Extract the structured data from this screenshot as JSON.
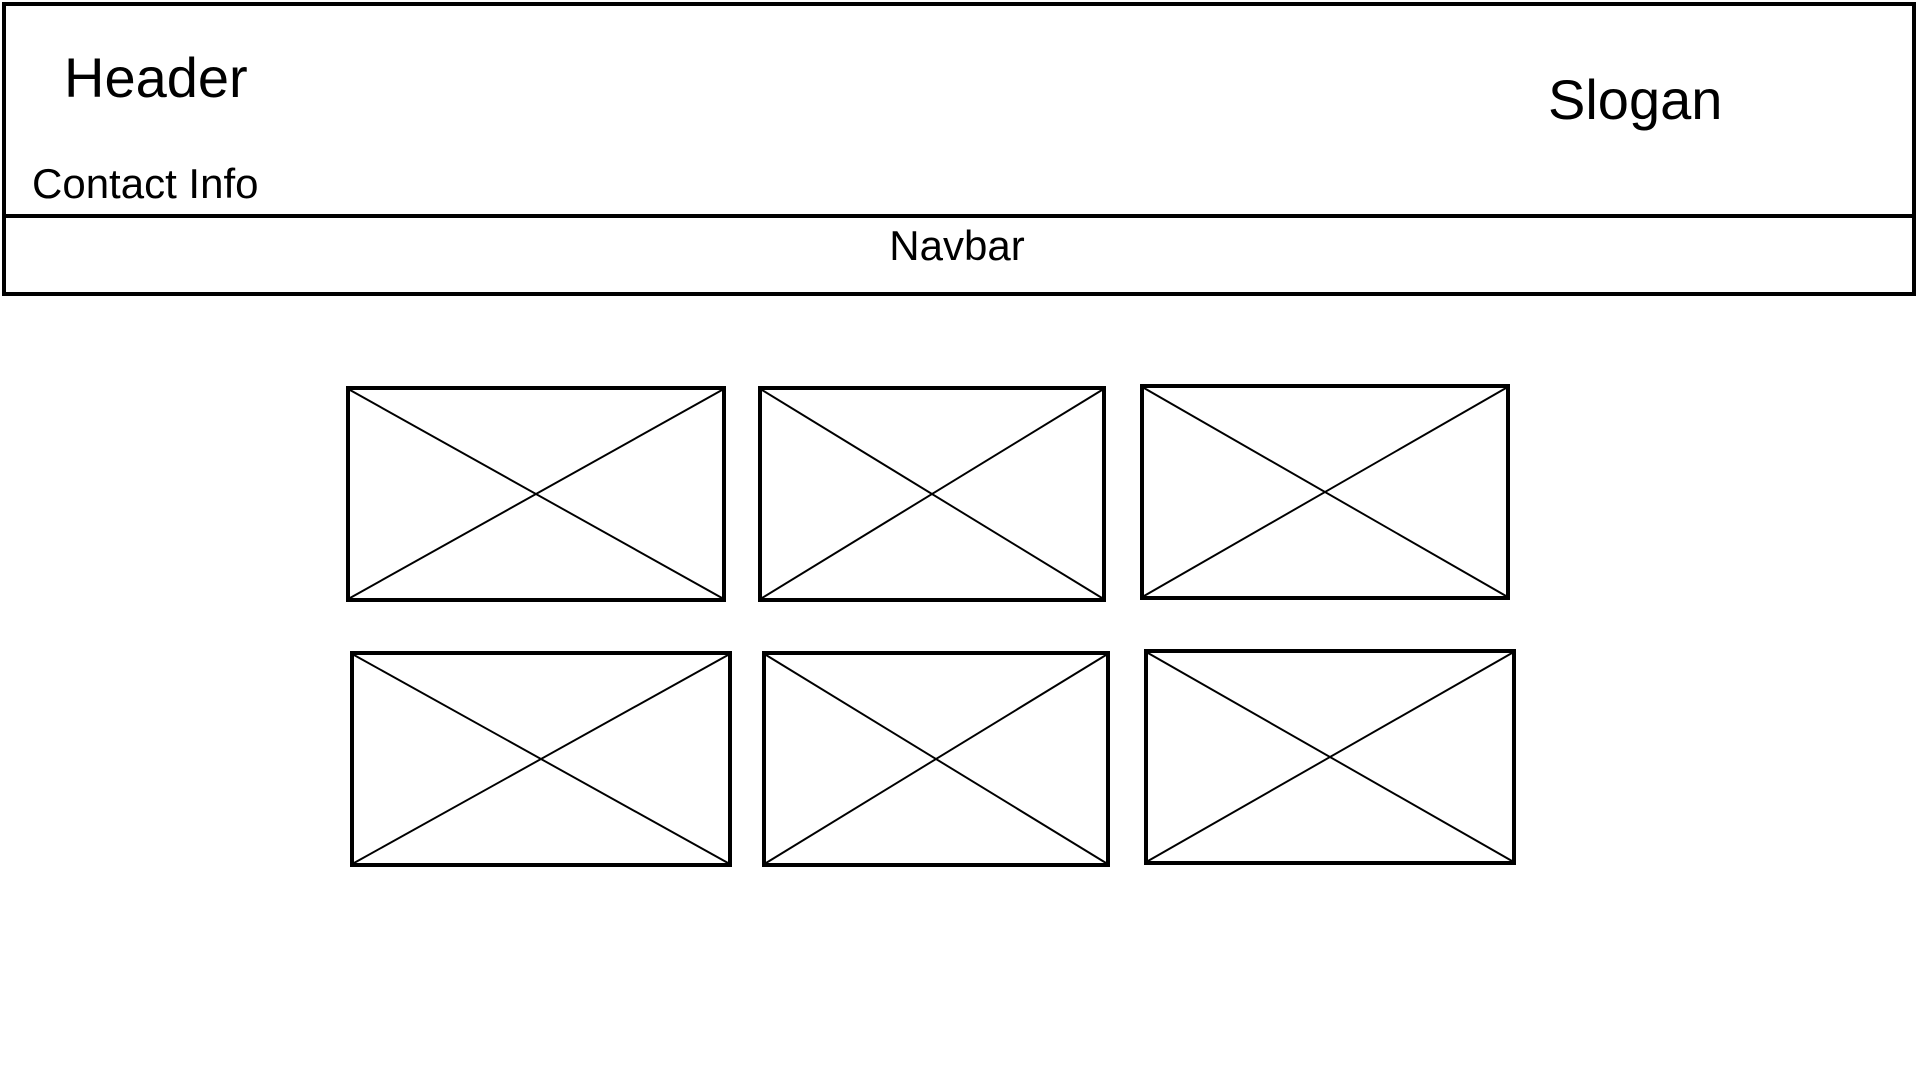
{
  "header": {
    "title": "Header",
    "contact_info": "Contact Info",
    "slogan": "Slogan"
  },
  "navbar": {
    "label": "Navbar"
  },
  "image_grid": {
    "placeholder_count": 6,
    "placeholder_icon": "image-placeholder-icon",
    "line_color": "#000000"
  }
}
